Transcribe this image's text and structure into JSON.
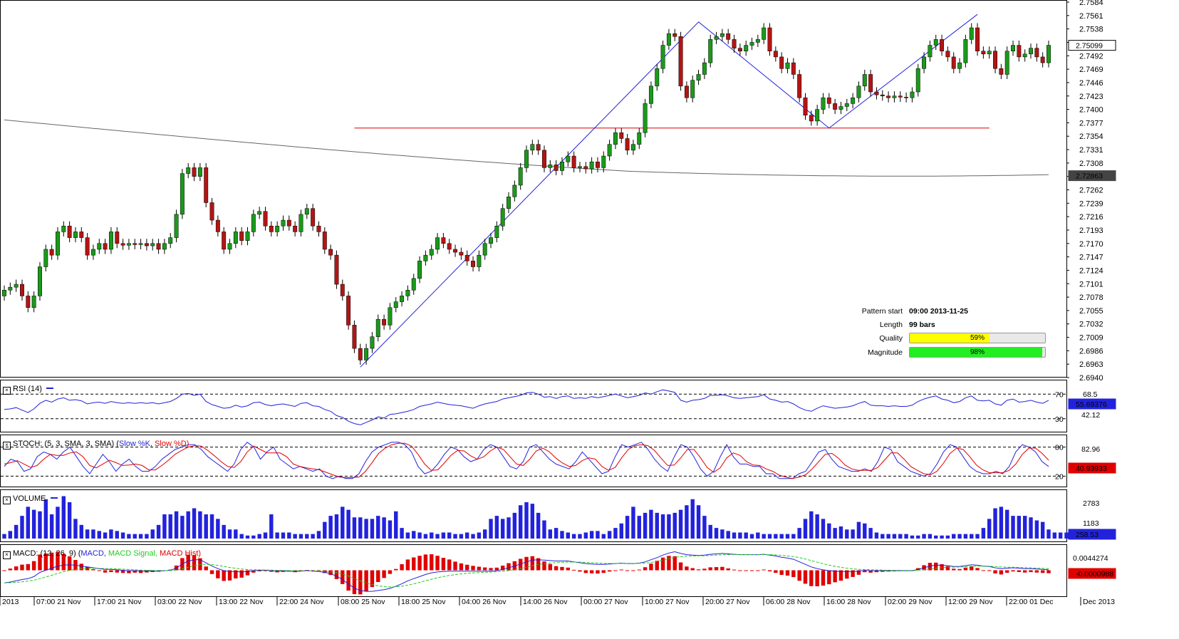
{
  "instrument_price_levels": [
    "2.7584",
    "2.7561",
    "2.7538",
    "2.7515",
    "2.7492",
    "2.7469",
    "2.7446",
    "2.7423",
    "2.7400",
    "2.7377",
    "2.7354",
    "2.7331",
    "2.7308",
    "2.7285",
    "2.7262",
    "2.7239",
    "2.7216",
    "2.7193",
    "2.7170",
    "2.7147",
    "2.7124",
    "2.7101",
    "2.7078",
    "2.7055",
    "2.7032",
    "2.7009",
    "2.6986",
    "2.6963",
    "2.6940"
  ],
  "price_tags": {
    "last": "2.75099",
    "ma": "2.72863"
  },
  "time_labels": [
    "2013",
    "07:00 21 Nov",
    "17:00 21 Nov",
    "03:00 22 Nov",
    "13:00 22 Nov",
    "22:00 24 Nov",
    "08:00 25 Nov",
    "18:00 25 Nov",
    "04:00 26 Nov",
    "14:00 26 Nov",
    "00:00 27 Nov",
    "10:00 27 Nov",
    "20:00 27 Nov",
    "06:00 28 Nov",
    "16:00 28 Nov",
    "02:00 29 Nov",
    "12:00 29 Nov",
    "22:00 01 Dec",
    "Dec 2013"
  ],
  "pattern_info": {
    "start_label": "Pattern start",
    "start_value": "09:00 2013-11-25",
    "length_label": "Length",
    "length_value": "99 bars",
    "quality_label": "Quality",
    "quality_value": "59%",
    "quality_pct": 59,
    "magnitude_label": "Magnitude",
    "magnitude_value": "98%",
    "magnitude_pct": 98
  },
  "indicators": {
    "rsi": {
      "title": "RSI (14)",
      "levels": [
        "70",
        "30"
      ],
      "right_labels": [
        "68.5",
        "42.12"
      ],
      "value": "55.69376"
    },
    "stoch": {
      "title": "STOCH: (5, 3, SMA, 3, SMA)",
      "k_label": "Slow %K,",
      "d_label": "Slow %D)",
      "open_paren": "(",
      "levels": [
        "80",
        "20"
      ],
      "right_labels": [
        "82.96"
      ],
      "value": "40.93933"
    },
    "volume": {
      "title": "VOLUME",
      "right_labels": [
        "2783",
        "1183"
      ],
      "value": "258.53"
    },
    "macd": {
      "title": "MACD: (12, 26, 9)",
      "macd_label": "MACD,",
      "signal_label": "MACD Signal,",
      "hist_label": "MACD Hist)",
      "open_paren": "(",
      "right_labels": [
        "0.0044274"
      ],
      "value": "-0.0000988"
    }
  },
  "colors": {
    "up": "#1a9a1a",
    "down": "#b41414",
    "blue": "#2222dd",
    "red": "#e00000",
    "green": "#22cc22",
    "ma": "#666666",
    "quality": "#ffff00",
    "magnitude": "#22ee22"
  },
  "chart_data": {
    "type": "candlestick",
    "main": {
      "ylim": [
        2.694,
        2.7584
      ],
      "support_level": 2.7368,
      "moving_average_value": 2.72863,
      "last_price": 2.75099,
      "pattern_points": [
        [
          60,
          2.6958
        ],
        [
          117,
          2.755
        ],
        [
          139,
          2.7368
        ],
        [
          164,
          2.7563
        ]
      ],
      "closes": [
        2.709,
        2.7095,
        2.71,
        2.708,
        2.706,
        2.708,
        2.713,
        2.716,
        2.715,
        2.719,
        2.72,
        2.718,
        2.719,
        2.718,
        2.715,
        2.716,
        2.717,
        2.716,
        2.719,
        2.717,
        2.7167,
        2.717,
        2.7168,
        2.717,
        2.7166,
        2.717,
        2.716,
        2.717,
        2.718,
        2.722,
        2.729,
        2.73,
        2.7285,
        2.73,
        2.724,
        2.721,
        2.719,
        2.716,
        2.717,
        2.719,
        2.7175,
        2.719,
        2.722,
        2.7225,
        2.72,
        2.719,
        2.72,
        2.721,
        2.72,
        2.719,
        2.722,
        2.723,
        2.72,
        2.719,
        2.716,
        2.715,
        2.71,
        2.708,
        2.703,
        2.699,
        2.697,
        2.699,
        2.701,
        2.704,
        2.703,
        2.706,
        2.707,
        2.708,
        2.709,
        2.711,
        2.714,
        2.715,
        2.716,
        2.718,
        2.717,
        2.716,
        2.7155,
        2.715,
        2.714,
        2.713,
        2.715,
        2.717,
        2.718,
        2.72,
        2.723,
        2.725,
        2.727,
        2.73,
        2.733,
        2.734,
        2.733,
        2.73,
        2.7305,
        2.7295,
        2.731,
        2.732,
        2.73,
        2.7302,
        2.7298,
        2.731,
        2.73,
        2.732,
        2.734,
        2.736,
        2.735,
        2.733,
        2.734,
        2.736,
        2.741,
        2.744,
        2.747,
        2.751,
        2.753,
        2.7525,
        2.744,
        2.742,
        2.745,
        2.746,
        2.748,
        2.752,
        2.7525,
        2.753,
        2.752,
        2.7505,
        2.75,
        2.751,
        2.7515,
        2.752,
        2.754,
        2.75,
        2.749,
        2.747,
        2.748,
        2.746,
        2.742,
        2.739,
        2.738,
        2.74,
        2.742,
        2.741,
        2.74,
        2.7405,
        2.741,
        2.742,
        2.744,
        2.746,
        2.743,
        2.7425,
        2.7423,
        2.742,
        2.7423,
        2.7421,
        2.742,
        2.743,
        2.747,
        2.749,
        2.751,
        2.752,
        2.75,
        2.749,
        2.747,
        2.748,
        2.752,
        2.754,
        2.75,
        2.7495,
        2.75,
        2.747,
        2.746,
        2.75,
        2.751,
        2.749,
        2.7495,
        2.7505,
        2.749,
        2.748,
        2.751
      ],
      "volumes": [
        300,
        500,
        900,
        1500,
        2100,
        1900,
        1800,
        2600,
        1600,
        2100,
        2800,
        2400,
        1300,
        900,
        600,
        600,
        500,
        400,
        600,
        500,
        400,
        300,
        300,
        300,
        300,
        600,
        900,
        1600,
        1600,
        1800,
        1500,
        1800,
        2000,
        1800,
        1600,
        1600,
        1300,
        900,
        600,
        600,
        300,
        200,
        200,
        300,
        400,
        1600,
        400,
        400,
        400,
        300,
        300,
        300,
        300,
        500,
        1100,
        1500,
        1600,
        2100,
        1900,
        1400,
        1400,
        1300,
        1300,
        1500,
        1400,
        1200,
        1800,
        700,
        400,
        500,
        400,
        300,
        400,
        300,
        400,
        400,
        300,
        300,
        400,
        300,
        400,
        600,
        1300,
        1500,
        1300,
        1400,
        1700,
        2200,
        2400,
        2300,
        1700,
        1200,
        600,
        700,
        500,
        400,
        300,
        300,
        400,
        500,
        500,
        300,
        500,
        700,
        1000,
        1500,
        2100,
        1500,
        1700,
        1900,
        1700,
        1600,
        1600,
        1700,
        1900,
        2200,
        2600,
        2200,
        1500,
        900,
        700,
        600,
        500,
        400,
        400,
        400,
        300,
        400,
        300,
        300,
        300,
        300,
        300,
        300,
        700,
        1300,
        1800,
        1600,
        1300,
        1000,
        700,
        800,
        600,
        600,
        1100,
        1000,
        700,
        400,
        300,
        300,
        300,
        300,
        300,
        200,
        200,
        300,
        300,
        200,
        200,
        200,
        300,
        300,
        300,
        300,
        300,
        700,
        1300,
        2000,
        2100,
        1900,
        1500,
        1500,
        1500,
        1400,
        1200,
        1100,
        600,
        400,
        400,
        400,
        300,
        300,
        300,
        300,
        300,
        200,
        200,
        200,
        300
      ],
      "macd_line": [
        -0.003,
        -0.0028,
        -0.0025,
        -0.0022,
        -0.002,
        -0.0015,
        -0.0005,
        0.0,
        0.0005,
        0.001,
        0.0012,
        0.0013,
        0.0012,
        0.001,
        0.0008,
        0.0006,
        0.0004,
        0.0002,
        0.0002,
        0.0001,
        0.0,
        -0.0001,
        -0.0001,
        -0.0002,
        -0.0002,
        -0.0002,
        -0.0002,
        -0.0001,
        0.0,
        0.0005,
        0.0015,
        0.0022,
        0.0025,
        0.0025,
        0.0018,
        0.001,
        0.0004,
        -0.0001,
        -0.0003,
        -0.0003,
        -0.0004,
        -0.0003,
        -0.0001,
        0.0,
        0.0,
        -0.0001,
        -0.0002,
        -0.0002,
        -0.0002,
        -0.0003,
        -0.0002,
        -0.0001,
        -0.0002,
        -0.0003,
        -0.0005,
        -0.0008,
        -0.0014,
        -0.0022,
        -0.0033,
        -0.0042,
        -0.0048,
        -0.005,
        -0.005,
        -0.0048,
        -0.0046,
        -0.0043,
        -0.0038,
        -0.0032,
        -0.0025,
        -0.002,
        -0.0015,
        -0.001,
        -0.0006,
        -0.0004,
        -0.0003,
        -0.0002,
        -0.0002,
        -0.0002,
        -0.0002,
        -0.0002,
        -0.0002,
        -0.0002,
        -0.0002,
        -0.0001,
        0.0002,
        0.0006,
        0.001,
        0.0015,
        0.002,
        0.0024,
        0.0025,
        0.0024,
        0.0023,
        0.0022,
        0.0022,
        0.0022,
        0.002,
        0.0018,
        0.0016,
        0.0015,
        0.0014,
        0.0014,
        0.0015,
        0.0016,
        0.0017,
        0.0016,
        0.0016,
        0.0017,
        0.002,
        0.0025,
        0.003,
        0.0036,
        0.0041,
        0.0044,
        0.004,
        0.0037,
        0.0036,
        0.0035,
        0.0036,
        0.0038,
        0.0039,
        0.004,
        0.0039,
        0.0038,
        0.0037,
        0.0037,
        0.0037,
        0.0037,
        0.0038,
        0.0036,
        0.0034,
        0.0031,
        0.0029,
        0.0026,
        0.002,
        0.0014,
        0.0008,
        0.0004,
        0.0001,
        -0.0001,
        -0.0002,
        -0.0003,
        -0.0003,
        -0.0003,
        -0.0002,
        0.0,
        -0.0001,
        -0.0001,
        -0.0001,
        -0.0001,
        -0.0001,
        -0.0001,
        -0.0001,
        -0.0001,
        0.0002,
        0.0006,
        0.001,
        0.0012,
        0.0012,
        0.0011,
        0.0009,
        0.0009,
        0.0011,
        0.0013,
        0.0012,
        0.001,
        0.0009,
        0.0006,
        0.0004,
        0.0005,
        0.0006,
        0.0005,
        0.0004,
        0.0004,
        0.0003,
        0.0002,
        0.0001
      ],
      "rsi": [
        45,
        46,
        48,
        44,
        40,
        46,
        55,
        60,
        57,
        62,
        64,
        60,
        61,
        59,
        54,
        56,
        57,
        55,
        58,
        56,
        55,
        56,
        55,
        56,
        55,
        56,
        54,
        56,
        58,
        63,
        70,
        71,
        68,
        70,
        58,
        53,
        50,
        47,
        48,
        52,
        49,
        51,
        56,
        57,
        53,
        51,
        53,
        54,
        52,
        50,
        55,
        56,
        51,
        50,
        45,
        42,
        35,
        32,
        26,
        22,
        20,
        24,
        28,
        33,
        31,
        37,
        38,
        40,
        42,
        45,
        50,
        52,
        54,
        57,
        55,
        53,
        52,
        51,
        49,
        47,
        51,
        54,
        56,
        58,
        62,
        64,
        66,
        68,
        72,
        73,
        70,
        65,
        66,
        63,
        66,
        67,
        63,
        64,
        63,
        66,
        64,
        66,
        68,
        70,
        67,
        64,
        66,
        68,
        72,
        70,
        74,
        77,
        75,
        73,
        60,
        57,
        60,
        61,
        63,
        68,
        68,
        69,
        67,
        64,
        63,
        64,
        65,
        66,
        69,
        62,
        60,
        57,
        58,
        54,
        48,
        44,
        42,
        47,
        51,
        49,
        47,
        48,
        49,
        51,
        55,
        58,
        52,
        51,
        51,
        50,
        51,
        50,
        50,
        52,
        58,
        62,
        65,
        67,
        62,
        60,
        56,
        58,
        64,
        67,
        60,
        59,
        60,
        54,
        52,
        60,
        62,
        57,
        58,
        60,
        57,
        55,
        60
      ],
      "stoch_k": [
        40,
        55,
        50,
        30,
        35,
        60,
        70,
        65,
        55,
        70,
        80,
        60,
        40,
        25,
        45,
        65,
        50,
        30,
        45,
        55,
        40,
        30,
        30,
        40,
        55,
        65,
        75,
        80,
        85,
        85,
        75,
        60,
        50,
        40,
        30,
        45,
        75,
        90,
        80,
        55,
        70,
        80,
        55,
        45,
        35,
        40,
        35,
        30,
        35,
        20,
        15,
        20,
        15,
        15,
        25,
        50,
        70,
        80,
        85,
        90,
        90,
        85,
        70,
        40,
        25,
        30,
        45,
        65,
        80,
        75,
        60,
        50,
        55,
        75,
        85,
        80,
        60,
        40,
        35,
        50,
        80,
        85,
        70,
        55,
        45,
        40,
        35,
        50,
        70,
        55,
        40,
        25,
        30,
        60,
        85,
        80,
        85,
        90,
        75,
        55,
        40,
        30,
        60,
        85,
        80,
        60,
        35,
        20,
        30,
        60,
        85,
        60,
        45,
        45,
        40,
        40,
        25,
        25,
        15,
        15,
        15,
        25,
        30,
        50,
        70,
        75,
        55,
        40,
        35,
        30,
        30,
        35,
        30,
        50,
        80,
        75,
        50,
        40,
        30,
        25,
        20,
        25,
        45,
        70,
        85,
        80,
        60,
        40,
        30,
        25,
        25,
        30,
        25,
        40,
        70,
        85,
        80,
        70,
        50,
        40
      ],
      "stoch_d": [
        45,
        48,
        52,
        45,
        38,
        42,
        55,
        65,
        63,
        63,
        68,
        70,
        60,
        42,
        37,
        45,
        53,
        48,
        42,
        43,
        45,
        42,
        33,
        33,
        42,
        53,
        65,
        73,
        80,
        83,
        82,
        73,
        62,
        50,
        40,
        38,
        50,
        70,
        82,
        75,
        68,
        68,
        68,
        60,
        45,
        40,
        37,
        35,
        33,
        28,
        23,
        18,
        17,
        17,
        18,
        30,
        48,
        67,
        78,
        85,
        88,
        88,
        82,
        65,
        45,
        32,
        33,
        47,
        63,
        73,
        72,
        62,
        55,
        60,
        72,
        80,
        75,
        60,
        45,
        42,
        55,
        72,
        78,
        70,
        57,
        47,
        40,
        42,
        52,
        58,
        55,
        40,
        32,
        38,
        58,
        75,
        83,
        85,
        83,
        73,
        57,
        42,
        43,
        58,
        75,
        75,
        58,
        38,
        28,
        37,
        58,
        68,
        63,
        50,
        43,
        42,
        35,
        30,
        22,
        18,
        15,
        18,
        23,
        35,
        50,
        65,
        67,
        57,
        43,
        35,
        32,
        32,
        32,
        38,
        53,
        68,
        68,
        55,
        40,
        32,
        25,
        23,
        30,
        47,
        67,
        78,
        75,
        60,
        43,
        33,
        27,
        27,
        27,
        32,
        45,
        65,
        78,
        78,
        67,
        53
      ],
      "open_note": "Candle opens = previous close"
    }
  }
}
